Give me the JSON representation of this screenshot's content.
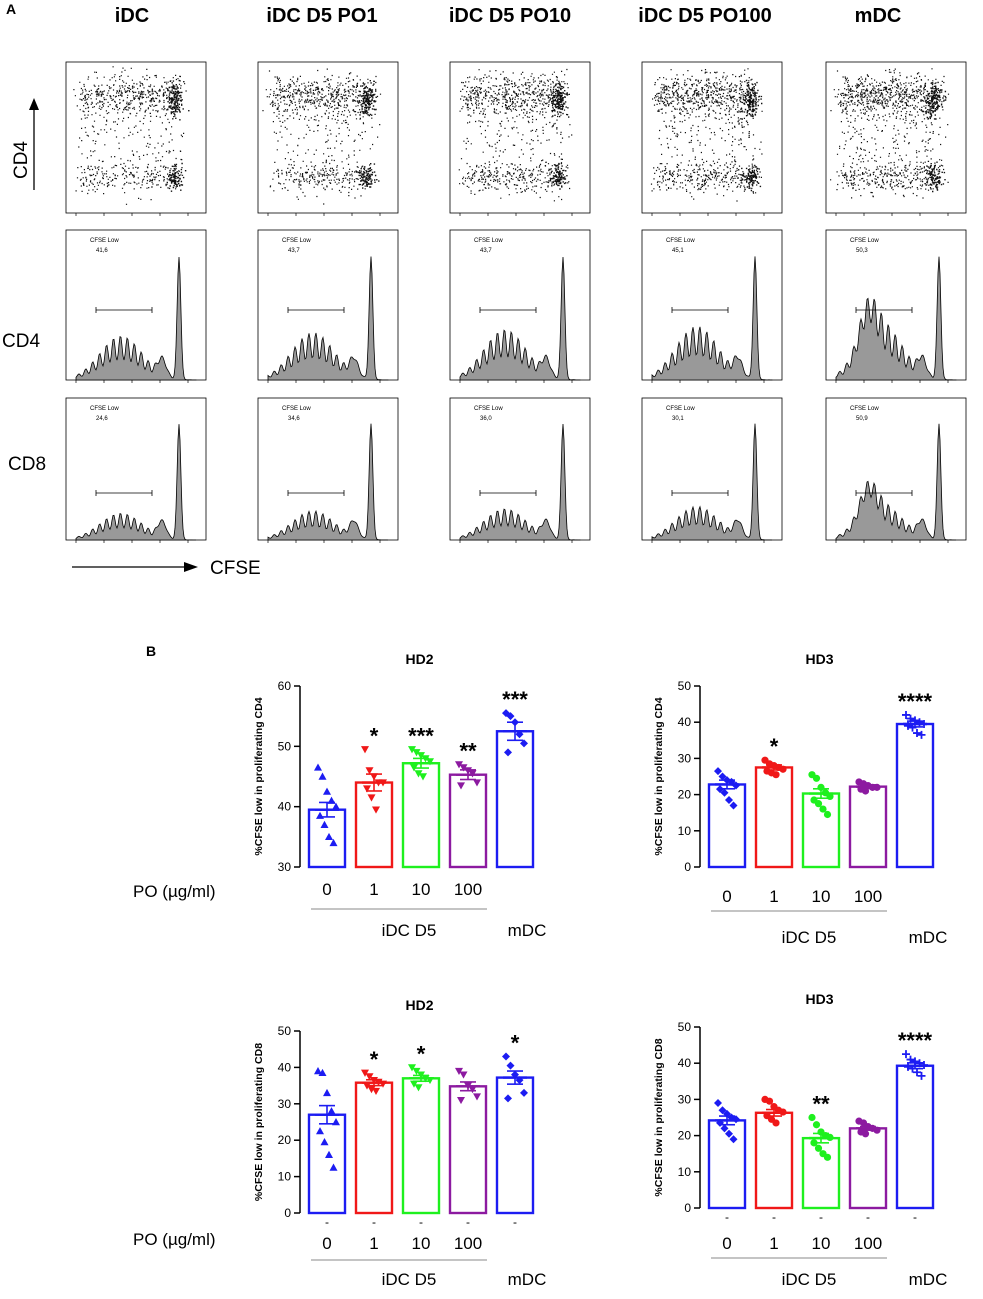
{
  "panel_a": {
    "letter": "A",
    "columns": [
      "iDC",
      "iDC D5 PO1",
      "iDC D5 PO10",
      "iDC D5 PO100",
      "mDC"
    ],
    "row_labels": {
      "top_axis": "CD4",
      "cd4": "CD4",
      "cd8": "CD8"
    },
    "x_axis_label": "CFSE",
    "gate_label": "CFSE Low",
    "cd4_values": [
      "41,6",
      "43,7",
      "43,7",
      "45,1",
      "50,3"
    ],
    "cd8_values": [
      "24,6",
      "34,6",
      "36,0",
      "30,1",
      "50,9"
    ]
  },
  "panel_b": {
    "letter": "B",
    "po_label": "PO (µg/ml)",
    "group_label": "iDC D5",
    "mdc_label": "mDC",
    "dash_label": "-"
  },
  "chart_data": [
    {
      "type": "bar",
      "title": "HD2",
      "ylabel": "%CFSE low in proliferating CD4",
      "categories": [
        "0",
        "1",
        "10",
        "100",
        "mDC"
      ],
      "values": [
        39.5,
        44.0,
        47.2,
        45.3,
        52.5
      ],
      "sem": [
        1.2,
        1.4,
        0.8,
        0.8,
        1.5
      ],
      "ylim": [
        30,
        60
      ],
      "yticks": [
        30,
        40,
        50,
        60
      ],
      "colors": [
        "#1c1cf2",
        "#f01818",
        "#1ef01e",
        "#8c1aa0",
        "#1c1cf2"
      ],
      "markers": [
        "triangle",
        "triangle-down",
        "triangle-down",
        "triangle-down",
        "diamond"
      ],
      "significance": [
        "",
        "*",
        "***",
        "**",
        "***"
      ],
      "points": [
        [
          46.5,
          45.0,
          42.5,
          41.0,
          40.0,
          38.5,
          37.0,
          35.0,
          34.0
        ],
        [
          49.5,
          46.0,
          45.0,
          44.0,
          44.0,
          43.0,
          41.5,
          39.5
        ],
        [
          49.5,
          49.0,
          48.5,
          48.0,
          47.5,
          46.5,
          45.5,
          45.0
        ],
        [
          47.0,
          46.5,
          46.0,
          45.5,
          44.0,
          43.5
        ],
        [
          55.5,
          55.0,
          54.0,
          52.0,
          50.5,
          49.0
        ]
      ]
    },
    {
      "type": "bar",
      "title": "HD3",
      "ylabel": "%CFSE low in proliferating CD4",
      "categories": [
        "0",
        "1",
        "10",
        "100",
        "mDC"
      ],
      "values": [
        22.8,
        27.5,
        20.3,
        22.2,
        39.5
      ],
      "sem": [
        1.2,
        0.7,
        1.3,
        0.5,
        0.8
      ],
      "ylim": [
        0,
        50
      ],
      "yticks": [
        0,
        10,
        20,
        30,
        40,
        50
      ],
      "colors": [
        "#1c1cf2",
        "#f01818",
        "#1ef01e",
        "#8c1aa0",
        "#1c1cf2"
      ],
      "markers": [
        "diamond",
        "circle",
        "circle",
        "circle",
        "plus"
      ],
      "significance": [
        "",
        "*",
        "",
        "",
        "****"
      ],
      "points": [
        [
          26.5,
          25.0,
          24.0,
          23.5,
          22.5,
          21.5,
          20.5,
          18.5,
          17.0
        ],
        [
          29.5,
          28.5,
          28.0,
          27.5,
          27.0,
          26.5,
          26.0,
          25.5
        ],
        [
          25.5,
          24.5,
          22.0,
          20.5,
          19.5,
          18.5,
          17.5,
          16.0,
          14.5
        ],
        [
          23.5,
          23.0,
          22.5,
          22.0,
          22.0,
          21.5,
          21.0
        ],
        [
          42.0,
          41.0,
          40.5,
          40.0,
          39.5,
          39.0,
          38.5,
          37.0,
          36.5
        ]
      ]
    },
    {
      "type": "bar",
      "title": "HD2",
      "ylabel": "%CFSE low in proliferating CD8",
      "categories": [
        "0",
        "1",
        "10",
        "100",
        "mDC"
      ],
      "values": [
        27.0,
        35.8,
        37.0,
        34.8,
        37.2
      ],
      "sem": [
        2.5,
        0.8,
        0.8,
        1.2,
        1.8
      ],
      "ylim": [
        0,
        50
      ],
      "yticks": [
        0,
        10,
        20,
        30,
        40,
        50
      ],
      "colors": [
        "#1c1cf2",
        "#f01818",
        "#1ef01e",
        "#8c1aa0",
        "#1c1cf2"
      ],
      "markers": [
        "triangle",
        "triangle-down",
        "triangle-down",
        "triangle-down",
        "diamond"
      ],
      "significance": [
        "",
        "*",
        "*",
        "",
        "*"
      ],
      "points": [
        [
          39.0,
          38.5,
          33.0,
          28.0,
          25.0,
          22.5,
          19.5,
          16.0,
          12.5
        ],
        [
          38.5,
          37.5,
          36.5,
          36.0,
          35.5,
          35.0,
          34.0,
          33.5
        ],
        [
          40.0,
          39.0,
          38.0,
          37.0,
          36.5,
          35.5,
          34.5
        ],
        [
          39.0,
          38.0,
          35.0,
          34.0,
          32.0,
          31.0
        ],
        [
          43.0,
          40.5,
          38.0,
          36.5,
          33.0,
          31.5
        ]
      ]
    },
    {
      "type": "bar",
      "title": "HD3",
      "ylabel": "%CFSE low in proliferating CD8",
      "categories": [
        "0",
        "1",
        "10",
        "100",
        "mDC"
      ],
      "values": [
        24.2,
        26.3,
        19.3,
        22.0,
        39.3
      ],
      "sem": [
        1.2,
        0.9,
        1.3,
        0.5,
        0.8
      ],
      "ylim": [
        0,
        50
      ],
      "yticks": [
        0,
        10,
        20,
        30,
        40,
        50
      ],
      "colors": [
        "#1c1cf2",
        "#f01818",
        "#1ef01e",
        "#8c1aa0",
        "#1c1cf2"
      ],
      "markers": [
        "diamond",
        "circle",
        "circle",
        "circle",
        "plus"
      ],
      "significance": [
        "",
        "",
        "**",
        "",
        "****"
      ],
      "points": [
        [
          29.0,
          27.0,
          26.0,
          25.0,
          24.5,
          23.5,
          22.0,
          20.5,
          19.0
        ],
        [
          30.0,
          29.5,
          28.0,
          27.0,
          26.5,
          25.5,
          24.5,
          23.5
        ],
        [
          25.0,
          23.0,
          21.0,
          20.0,
          19.5,
          18.0,
          16.5,
          15.0,
          14.0
        ],
        [
          24.0,
          23.5,
          22.5,
          22.0,
          21.5,
          21.0,
          20.5
        ],
        [
          42.5,
          41.0,
          40.5,
          40.0,
          39.5,
          39.0,
          38.5,
          37.5,
          36.5
        ]
      ]
    }
  ]
}
